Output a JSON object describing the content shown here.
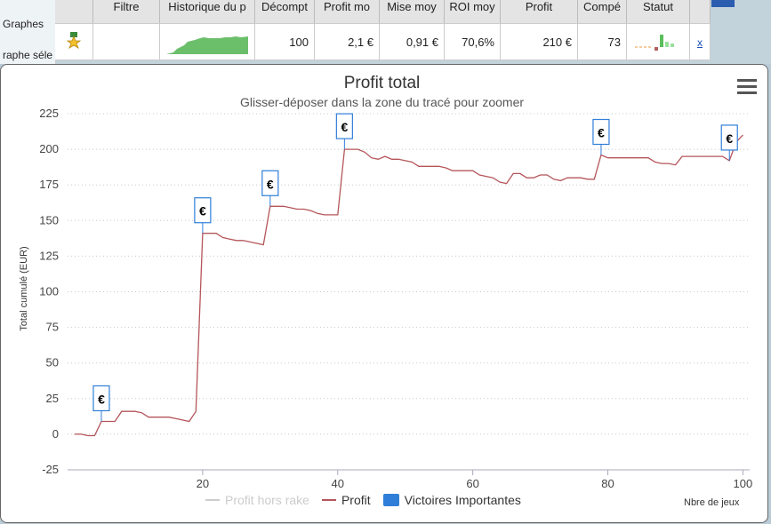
{
  "sidebar": {
    "label_graphs": "Graphes",
    "label_selected": "raphe séle"
  },
  "table": {
    "headers": [
      "Filtre",
      "Historique du p",
      "Décompt",
      "Profit mo",
      "Mise moy",
      "ROI moy",
      "Profit",
      "Compé",
      "Statut"
    ],
    "row": {
      "count": "100",
      "avg_profit": "2,1 €",
      "avg_stake": "0,91 €",
      "roi": "70,6%",
      "profit": "210 €",
      "comp": "73",
      "remove_link": "x"
    }
  },
  "colors": {
    "profit_line": "#b5555a",
    "victory_box": "#2f7ed8",
    "sparkline": "#6bbf6b"
  },
  "chart_data": {
    "type": "line",
    "title": "Profit total",
    "subtitle": "Glisser-déposer dans la zone du tracé pour zoomer",
    "xlabel": "Nbre de jeux",
    "ylabel": "Total cumulé (EUR)",
    "xlim": [
      0,
      101
    ],
    "ylim": [
      -25,
      225
    ],
    "x_ticks": [
      20,
      40,
      60,
      80,
      100
    ],
    "y_ticks": [
      -25,
      0,
      25,
      50,
      75,
      100,
      125,
      150,
      175,
      200,
      225
    ],
    "grid": "horizontal dotted",
    "legend": "bottom-center",
    "series": [
      {
        "name": "Profit hors rake",
        "visible": false,
        "x": [],
        "y": []
      },
      {
        "name": "Profit",
        "x": [
          1,
          2,
          3,
          4,
          5,
          6,
          7,
          8,
          9,
          10,
          11,
          12,
          13,
          14,
          15,
          16,
          17,
          18,
          19,
          20,
          21,
          22,
          23,
          24,
          25,
          26,
          27,
          28,
          29,
          30,
          31,
          32,
          33,
          34,
          35,
          36,
          37,
          38,
          39,
          40,
          41,
          42,
          43,
          44,
          45,
          46,
          47,
          48,
          49,
          50,
          51,
          52,
          53,
          54,
          55,
          56,
          57,
          58,
          59,
          60,
          61,
          62,
          63,
          64,
          65,
          66,
          67,
          68,
          69,
          70,
          71,
          72,
          73,
          74,
          75,
          76,
          77,
          78,
          79,
          80,
          81,
          82,
          83,
          84,
          85,
          86,
          87,
          88,
          89,
          90,
          91,
          92,
          93,
          94,
          95,
          96,
          97,
          98,
          99,
          100
        ],
        "y": [
          0,
          0,
          -1,
          -1,
          9,
          9,
          9,
          16,
          16,
          16,
          15,
          12,
          12,
          12,
          12,
          11,
          10,
          9,
          16,
          141,
          141,
          141,
          138,
          137,
          136,
          136,
          135,
          134,
          133,
          160,
          160,
          160,
          159,
          158,
          158,
          157,
          155,
          154,
          154,
          154,
          200,
          200,
          200,
          198,
          194,
          193,
          195,
          193,
          193,
          192,
          191,
          188,
          188,
          188,
          188,
          187,
          185,
          185,
          185,
          185,
          182,
          181,
          180,
          177,
          176,
          183,
          183,
          180,
          180,
          182,
          182,
          179,
          178,
          180,
          180,
          180,
          179,
          179,
          196,
          194,
          194,
          194,
          194,
          194,
          194,
          194,
          191,
          190,
          190,
          189,
          195,
          195,
          195,
          195,
          195,
          195,
          195,
          192,
          205,
          210
        ]
      },
      {
        "name": "Victoires Importantes",
        "type": "flags",
        "label": "€",
        "x": [
          5,
          20,
          30,
          41,
          79,
          98
        ]
      }
    ]
  }
}
